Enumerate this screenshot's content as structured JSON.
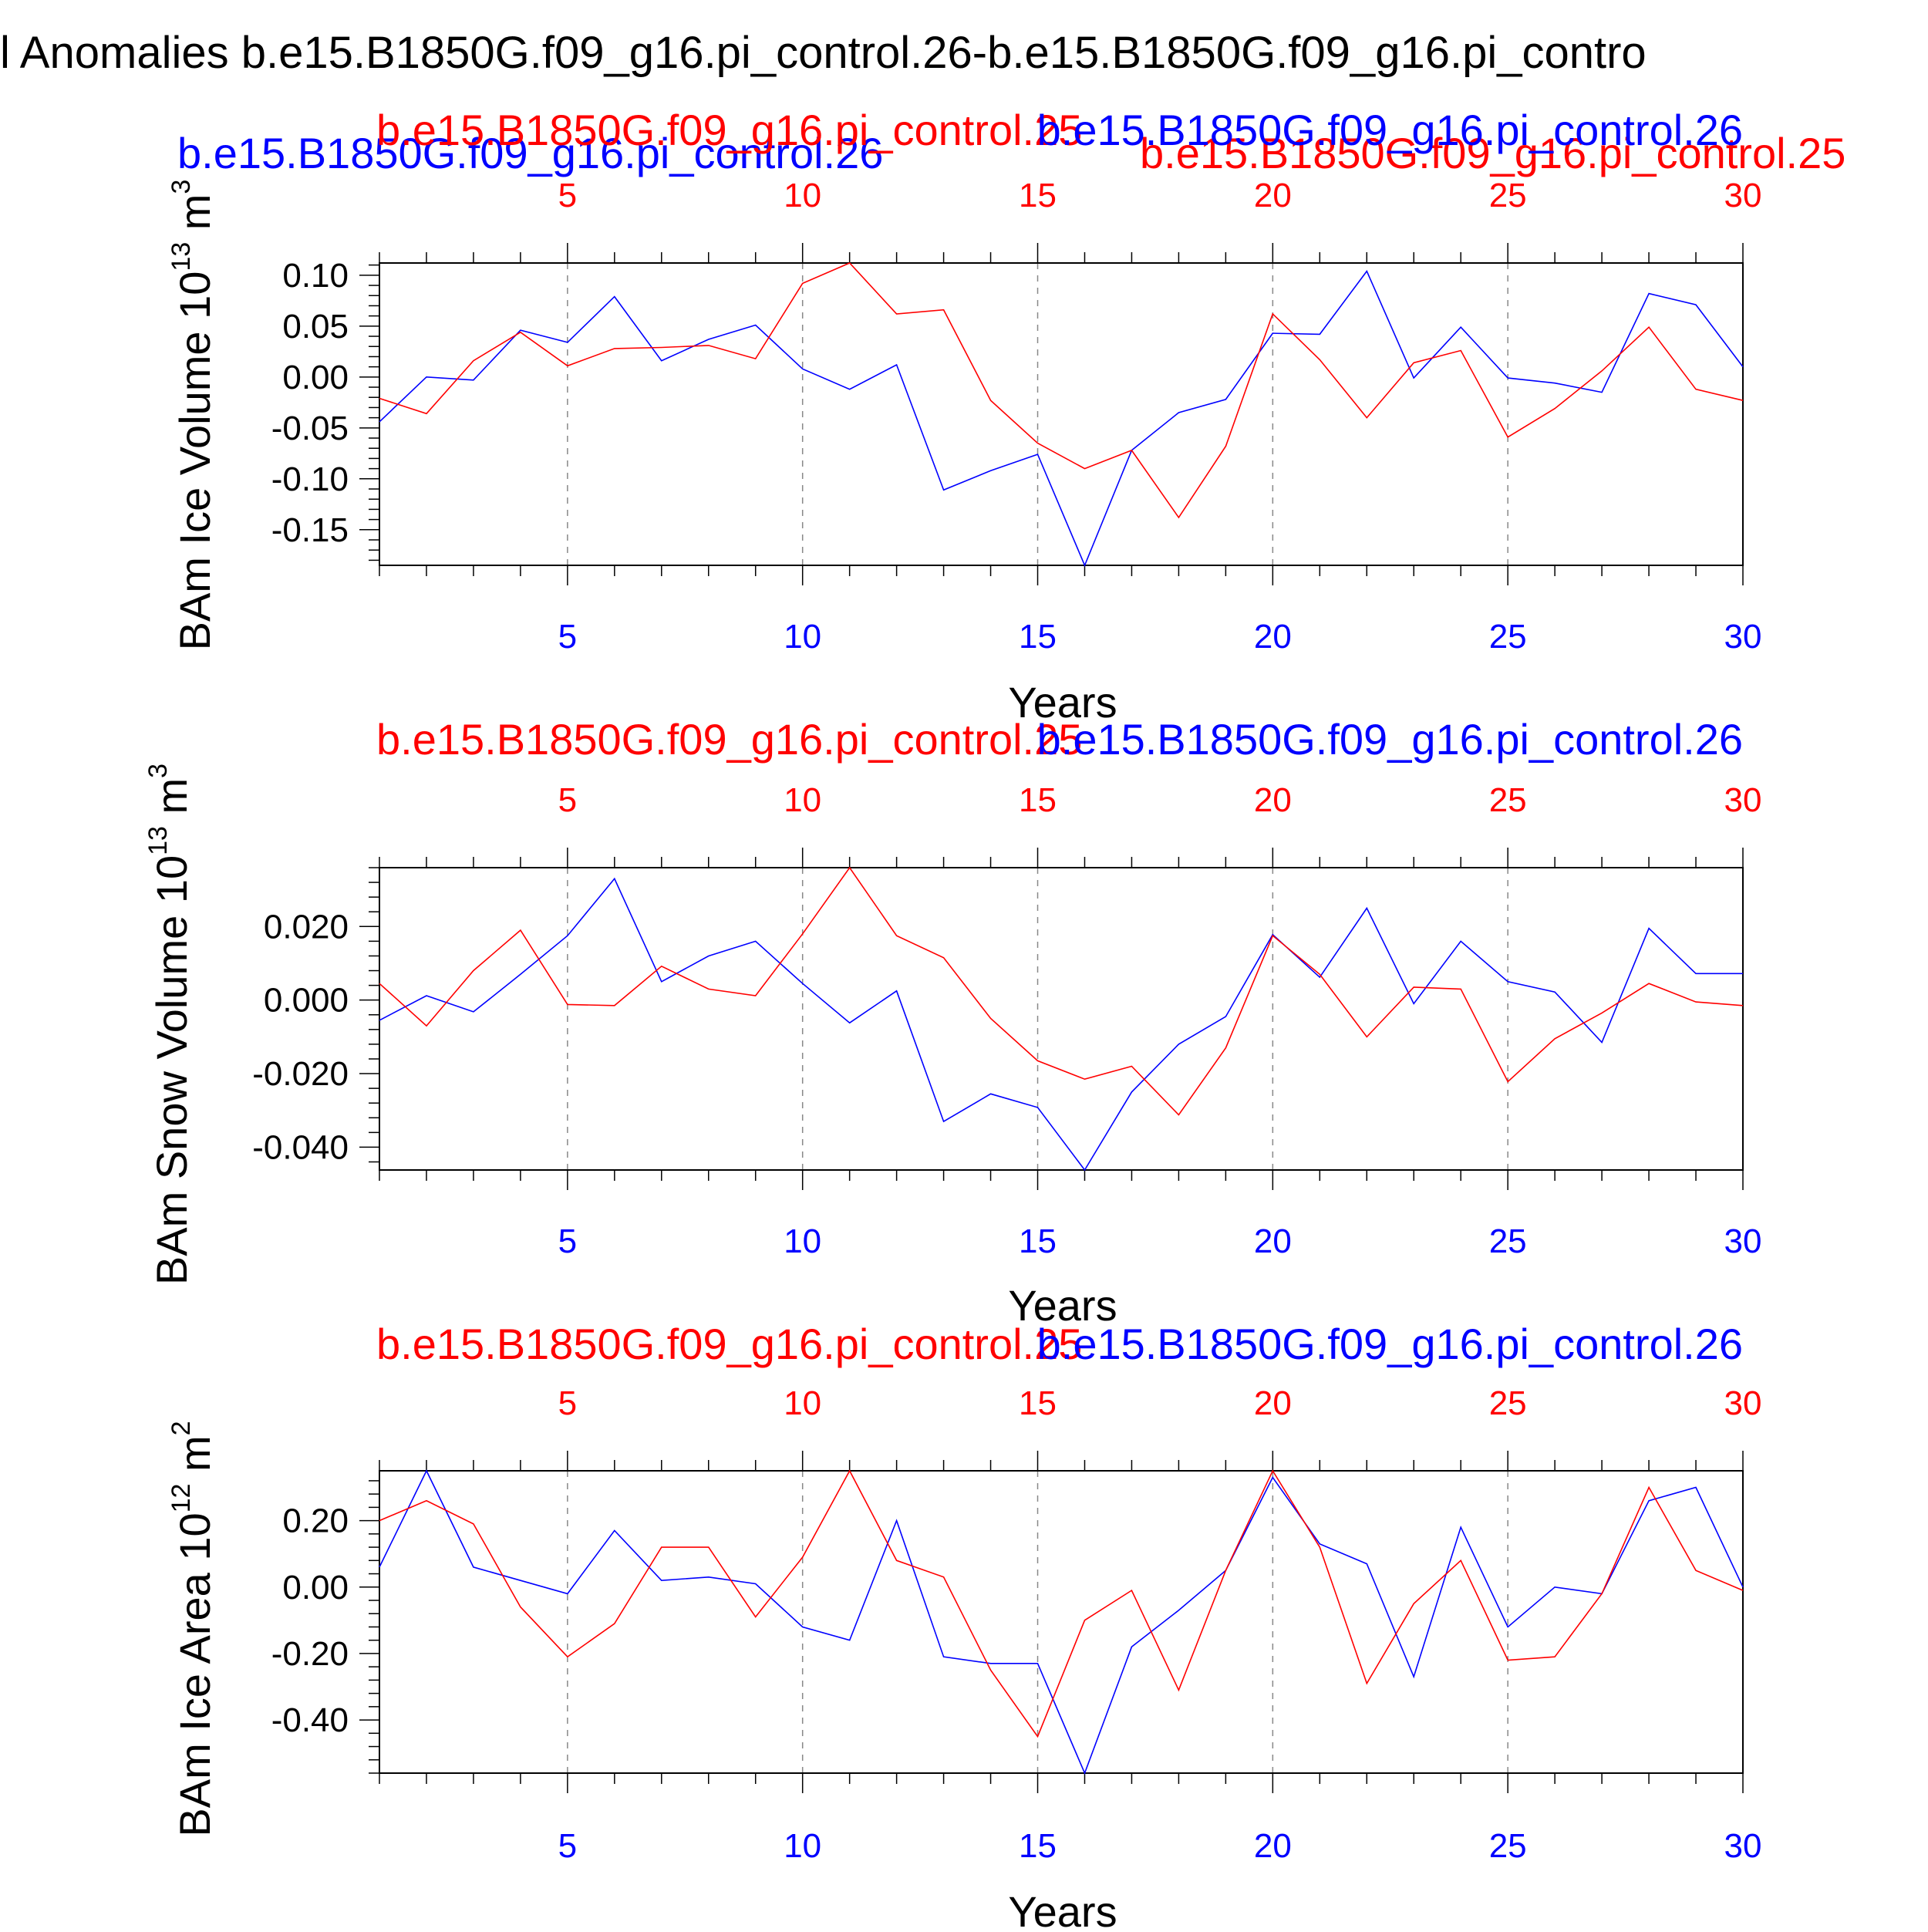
{
  "page_title": "l Anomalies b.e15.B1850G.f09_g16.pi_control.26-b.e15.B1850G.f09_g16.pi_contro",
  "colors": {
    "red": "#ff0000",
    "blue": "#0000ff",
    "axis": "#000000",
    "grid": "#888888"
  },
  "chart_data": [
    {
      "type": "line",
      "ylabel_text": "BAm Ice Volume 10",
      "ylabel_exp": "13",
      "ylabel_unit": " m",
      "ylabel_unit_exp": "3",
      "xlabel": "Years",
      "legend_red": "b.e15.B1850G.f09_g16.pi_control.25",
      "legend_blue": "b.e15.B1850G.f09_g16.pi_control.26",
      "legend_overlay_blue": "b.e15.B1850G.f09_g16.pi_control.26",
      "legend_overlay_red": "b.e15.B1850G.f09_g16.pi_control.25",
      "xlim": [
        1,
        30
      ],
      "ylim": [
        -0.185,
        0.112
      ],
      "x_ticks": [
        "5",
        "10",
        "15",
        "20",
        "25",
        "30"
      ],
      "y_ticks": [
        "0.10",
        "0.05",
        "0.00",
        "-0.05",
        "-0.10",
        "-0.15"
      ],
      "x": [
        1,
        2,
        3,
        4,
        5,
        6,
        7,
        8,
        9,
        10,
        11,
        12,
        13,
        14,
        15,
        16,
        17,
        18,
        19,
        20,
        21,
        22,
        23,
        24,
        25,
        26,
        27,
        28,
        29,
        30
      ],
      "series": [
        {
          "color": "blue",
          "values": [
            -0.044,
            0.0,
            -0.003,
            0.046,
            0.034,
            0.079,
            0.016,
            0.037,
            0.051,
            0.008,
            -0.012,
            0.012,
            -0.111,
            -0.092,
            -0.076,
            -0.185,
            -0.072,
            -0.035,
            -0.022,
            0.043,
            0.042,
            0.104,
            -0.001,
            0.049,
            -0.001,
            -0.006,
            -0.015,
            0.082,
            0.071,
            0.01
          ]
        },
        {
          "color": "red",
          "values": [
            -0.021,
            -0.036,
            0.016,
            0.044,
            0.011,
            0.028,
            0.029,
            0.031,
            0.018,
            0.092,
            0.112,
            0.062,
            0.066,
            -0.023,
            -0.065,
            -0.09,
            -0.072,
            -0.138,
            -0.068,
            0.062,
            0.017,
            -0.04,
            0.014,
            0.026,
            -0.059,
            -0.031,
            0.006,
            0.049,
            -0.012,
            -0.023
          ]
        }
      ]
    },
    {
      "type": "line",
      "ylabel_text": "BAm Snow Volume 10",
      "ylabel_exp": "13",
      "ylabel_unit": " m",
      "ylabel_unit_exp": "3",
      "xlabel": "Years",
      "legend_red": "b.e15.B1850G.f09_g16.pi_control.25",
      "legend_blue": "b.e15.B1850G.f09_g16.pi_control.26",
      "xlim": [
        1,
        30
      ],
      "ylim": [
        -0.0462,
        0.036
      ],
      "x_ticks": [
        "5",
        "10",
        "15",
        "20",
        "25",
        "30"
      ],
      "y_ticks": [
        "0.020",
        "0.000",
        "-0.020",
        "-0.040"
      ],
      "x": [
        1,
        2,
        3,
        4,
        5,
        6,
        7,
        8,
        9,
        10,
        11,
        12,
        13,
        14,
        15,
        16,
        17,
        18,
        19,
        20,
        21,
        22,
        23,
        24,
        25,
        26,
        27,
        28,
        29,
        30
      ],
      "series": [
        {
          "color": "blue",
          "values": [
            -0.0055,
            0.0012,
            -0.0032,
            0.007,
            0.0175,
            0.033,
            0.005,
            0.012,
            0.016,
            0.0045,
            -0.0062,
            0.0025,
            -0.033,
            -0.0255,
            -0.0292,
            -0.0462,
            -0.025,
            -0.012,
            -0.0045,
            0.0178,
            0.0062,
            0.025,
            -0.001,
            0.016,
            0.005,
            0.0022,
            -0.0115,
            0.0195,
            0.0072,
            0.0072
          ]
        },
        {
          "color": "red",
          "values": [
            0.0045,
            -0.007,
            0.008,
            0.019,
            -0.0012,
            -0.0015,
            0.0092,
            0.003,
            0.0012,
            0.018,
            0.036,
            0.0175,
            0.0115,
            -0.005,
            -0.0165,
            -0.0215,
            -0.018,
            -0.0312,
            -0.013,
            0.0175,
            0.007,
            -0.01,
            0.0035,
            0.003,
            -0.0222,
            -0.0105,
            -0.0035,
            0.0045,
            -0.0005,
            -0.0015
          ]
        }
      ]
    },
    {
      "type": "line",
      "ylabel_text": "BAm Ice Area 10",
      "ylabel_exp": "12",
      "ylabel_unit": " m",
      "ylabel_unit_exp": "2",
      "xlabel": "Years",
      "legend_red": "b.e15.B1850G.f09_g16.pi_control.25",
      "legend_blue": "b.e15.B1850G.f09_g16.pi_control.26",
      "xlim": [
        1,
        30
      ],
      "ylim": [
        -0.56,
        0.35
      ],
      "x_ticks": [
        "5",
        "10",
        "15",
        "20",
        "25",
        "30"
      ],
      "y_ticks": [
        "0.20",
        "0.00",
        "-0.20",
        "-0.40"
      ],
      "x": [
        1,
        2,
        3,
        4,
        5,
        6,
        7,
        8,
        9,
        10,
        11,
        12,
        13,
        14,
        15,
        16,
        17,
        18,
        19,
        20,
        21,
        22,
        23,
        24,
        25,
        26,
        27,
        28,
        29,
        30
      ],
      "series": [
        {
          "color": "blue",
          "values": [
            0.06,
            0.35,
            0.06,
            0.02,
            -0.02,
            0.17,
            0.02,
            0.03,
            0.01,
            -0.12,
            -0.16,
            0.2,
            -0.21,
            -0.23,
            -0.23,
            -0.56,
            -0.18,
            -0.07,
            0.05,
            0.33,
            0.13,
            0.07,
            -0.27,
            0.18,
            -0.12,
            0.0,
            -0.02,
            0.26,
            0.3,
            0.0
          ]
        },
        {
          "color": "red",
          "values": [
            0.2,
            0.26,
            0.19,
            -0.06,
            -0.21,
            -0.11,
            0.12,
            0.12,
            -0.09,
            0.09,
            0.35,
            0.08,
            0.03,
            -0.25,
            -0.45,
            -0.1,
            -0.01,
            -0.31,
            0.05,
            0.35,
            0.12,
            -0.29,
            -0.05,
            0.08,
            -0.22,
            -0.21,
            -0.02,
            0.3,
            0.05,
            -0.01
          ]
        }
      ]
    }
  ]
}
